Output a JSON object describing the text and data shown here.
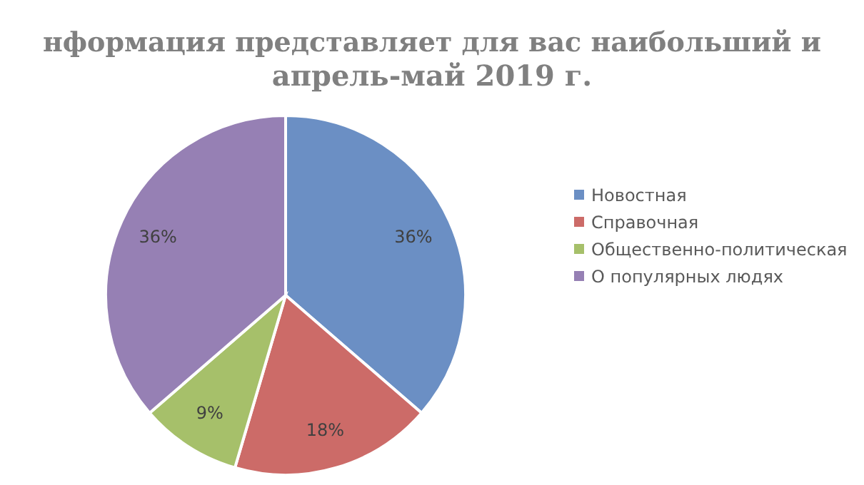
{
  "chart_data": {
    "type": "pie",
    "title": "нформация представляет для вас наибольший и\nапрель-май 2019 г.",
    "categories": [
      "Новостная",
      "Справочная",
      "Общественно-политическая",
      "О популярных людях"
    ],
    "values": [
      36,
      18,
      9,
      36
    ],
    "colors": [
      "#6b8fc4",
      "#cc6b68",
      "#a6c06a",
      "#9680b4"
    ],
    "value_labels": [
      "36%",
      "18%",
      "9%",
      "36%"
    ],
    "legend": "right"
  }
}
